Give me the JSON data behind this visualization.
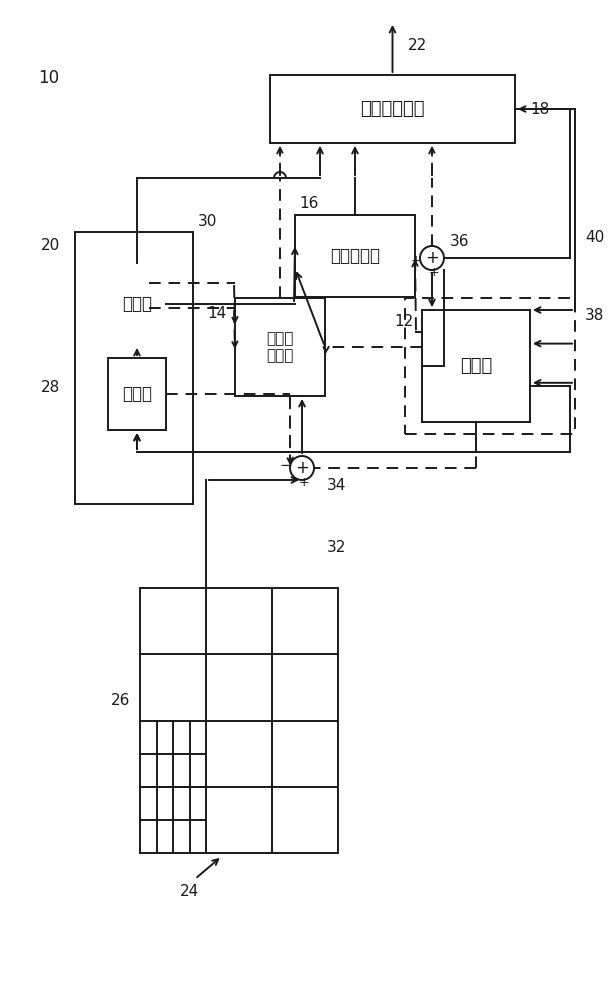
{
  "bg_color": "#ffffff",
  "lc": "#1a1a1a",
  "lw": 1.4,
  "label_10": "10",
  "label_22": "22",
  "label_18": "18",
  "label_20": "20",
  "label_30": "30",
  "label_16": "16",
  "label_36": "36",
  "label_40": "40",
  "label_38": "38",
  "label_12": "12",
  "label_14": "14",
  "label_28": "28",
  "label_34": "34",
  "label_32": "32",
  "label_26": "26",
  "label_24": "24",
  "txt_shujuliu": "数据流插入器",
  "txt_caichajianqi": "残差重建器",
  "txt_yuchabianmaqi": "残差预\n编码器",
  "txt_hebing": "合并器",
  "txt_xifenqi": "细分器",
  "txt_yucheqi": "预测器"
}
